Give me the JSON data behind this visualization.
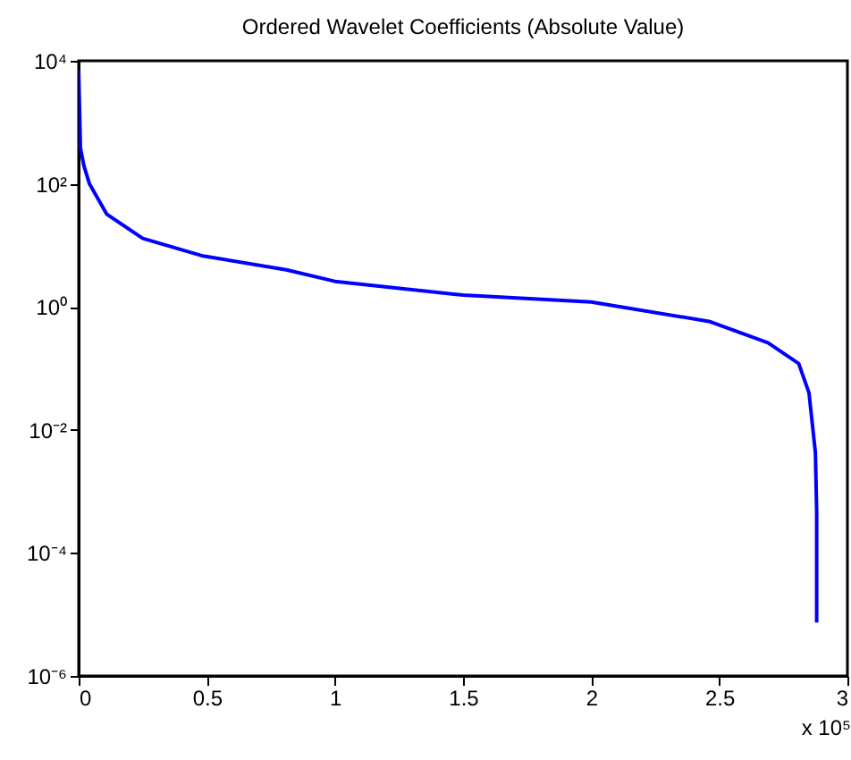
{
  "chart_data": {
    "type": "line",
    "title": "Ordered Wavelet Coefficients (Absolute Value)",
    "x": [
      0,
      0.007,
      0.02,
      0.042,
      0.11,
      0.25,
      0.48,
      0.81,
      1.0,
      1.5,
      2.0,
      2.46,
      2.69,
      2.81,
      2.85,
      2.875,
      2.88,
      2.88
    ],
    "series": [
      {
        "color": "#0000ff",
        "values": [
          7000,
          380,
          200,
          100,
          32,
          13,
          6.8,
          4,
          2.6,
          1.55,
          1.2,
          0.58,
          0.26,
          0.12,
          0.04,
          0.0043,
          0.00045,
          7.4e-06
        ]
      }
    ],
    "xlim": [
      0,
      3
    ],
    "xticks": [
      0,
      0.5,
      1,
      1.5,
      2,
      2.5,
      3
    ],
    "ylim": [
      1e-06,
      10000
    ],
    "yticks": [
      {
        "value": 1e-06,
        "label": "10⁻⁶"
      },
      {
        "value": 0.0001,
        "label": "10⁻⁴"
      },
      {
        "value": 0.01,
        "label": "10⁻²"
      },
      {
        "value": 1,
        "label": "10⁰"
      },
      {
        "value": 100,
        "label": "10²"
      },
      {
        "value": 10000,
        "label": "10⁴"
      }
    ],
    "log": "y",
    "grid": false,
    "legend": false,
    "marker": "none",
    "line_style": "solid",
    "annotations": [
      "x 10⁵"
    ]
  }
}
